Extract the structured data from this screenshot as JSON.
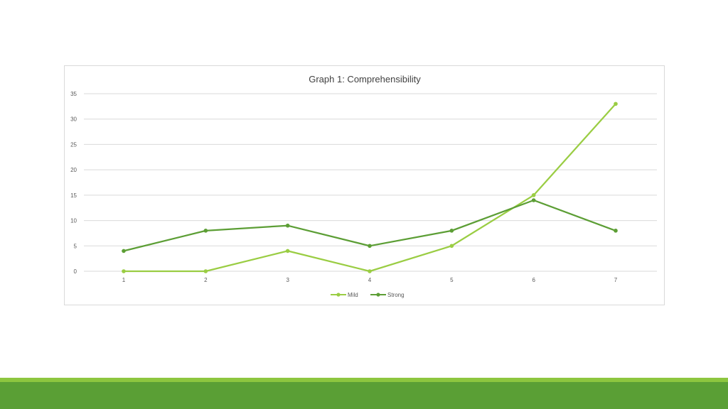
{
  "chart_data": {
    "type": "line",
    "title": "Graph 1: Comprehensibility",
    "x": [
      1,
      2,
      3,
      4,
      5,
      6,
      7
    ],
    "ylim": [
      0,
      35
    ],
    "yticks": [
      0,
      5,
      10,
      15,
      20,
      25,
      30,
      35
    ],
    "grid": true,
    "legend": "bottom",
    "series": [
      {
        "name": "Mild",
        "color": "#9acd43",
        "values": [
          0,
          0,
          4,
          0,
          5,
          15,
          33
        ]
      },
      {
        "name": "Strong",
        "color": "#5c9e35",
        "values": [
          4,
          8,
          9,
          5,
          8,
          14,
          8
        ]
      }
    ]
  },
  "colors": {
    "gridline": "#d9d9d9",
    "axis_text": "#595959",
    "title_text": "#404040"
  }
}
